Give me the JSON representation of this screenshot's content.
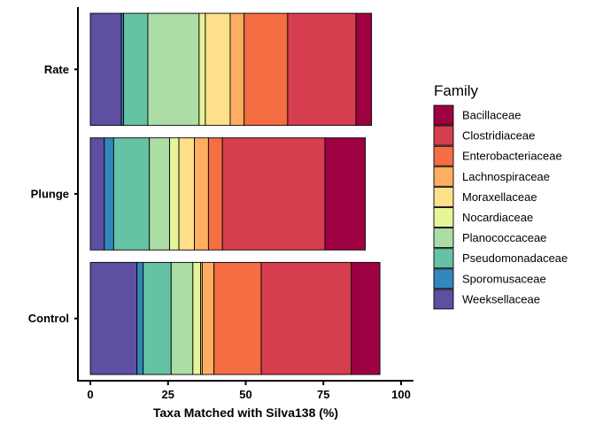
{
  "chart_data": {
    "type": "bar",
    "orientation": "horizontal",
    "stacked": true,
    "categories": [
      "Rate",
      "Plunge",
      "Control"
    ],
    "series": [
      {
        "name": "Weeksellaceae",
        "color": "#5E4FA2",
        "values": [
          10.0,
          4.5,
          15.0
        ]
      },
      {
        "name": "Sporomusaceae",
        "color": "#3288BD",
        "values": [
          0.7,
          3.0,
          2.0
        ]
      },
      {
        "name": "Pseudomonadaceae",
        "color": "#66C2A5",
        "values": [
          7.8,
          11.5,
          9.0
        ]
      },
      {
        "name": "Planococcaceae",
        "color": "#ABDDA4",
        "values": [
          16.5,
          6.5,
          7.0
        ]
      },
      {
        "name": "Nocardiaceae",
        "color": "#E6F598",
        "values": [
          2.0,
          3.0,
          2.5
        ]
      },
      {
        "name": "Moraxellaceae",
        "color": "#FEE08B",
        "values": [
          8.0,
          5.0,
          0.5
        ]
      },
      {
        "name": "Lachnospiraceae",
        "color": "#FDAE61",
        "values": [
          4.5,
          4.5,
          3.8
        ]
      },
      {
        "name": "Enterobacteriaceae",
        "color": "#F46D43",
        "values": [
          14.0,
          4.5,
          15.2
        ]
      },
      {
        "name": "Clostridiaceae",
        "color": "#D53E4F",
        "values": [
          22.0,
          33.0,
          29.0
        ]
      },
      {
        "name": "Bacillaceae",
        "color": "#9E0142",
        "values": [
          5.0,
          13.0,
          9.2
        ]
      }
    ],
    "legend_order": [
      "Bacillaceae",
      "Clostridiaceae",
      "Enterobacteriaceae",
      "Lachnospiraceae",
      "Moraxellaceae",
      "Nocardiaceae",
      "Planococcaceae",
      "Pseudomonadaceae",
      "Sporomusaceae",
      "Weeksellaceae"
    ],
    "xlabel": "Taxa Matched with Silva138 (%)",
    "ylabel": "",
    "xlim": [
      -4,
      104
    ],
    "xticks": [
      0,
      25,
      50,
      75,
      100
    ],
    "legend_title": "Family",
    "legend_position": "right",
    "grid": false
  }
}
